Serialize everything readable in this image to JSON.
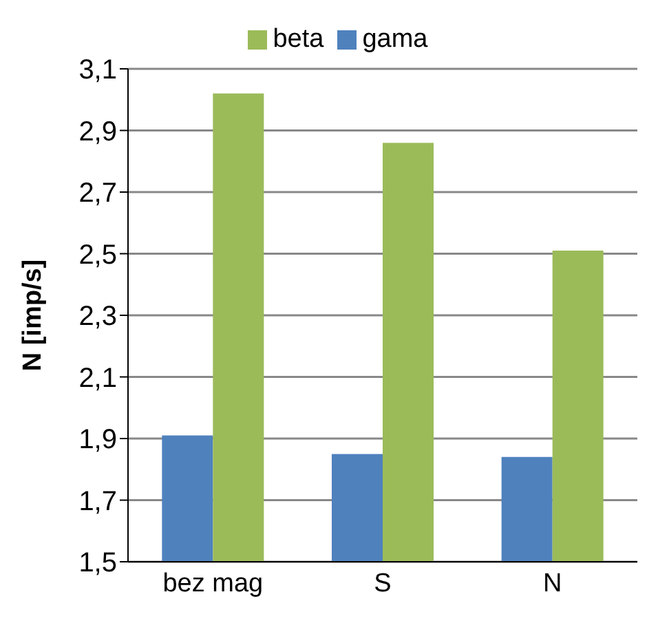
{
  "chart_data": {
    "type": "bar",
    "ylabel": "N [imp/s]",
    "categories": [
      "bez mag",
      "S",
      "N"
    ],
    "series": [
      {
        "name": "gama",
        "color": "#4f81bd",
        "values": [
          1.91,
          1.85,
          1.84
        ]
      },
      {
        "name": "beta",
        "color": "#9bbb59",
        "values": [
          3.02,
          2.86,
          2.51
        ]
      }
    ],
    "ylim": [
      1.5,
      3.1
    ],
    "yticks": [
      {
        "value": 1.5,
        "label": "1,5"
      },
      {
        "value": 1.7,
        "label": "1,7"
      },
      {
        "value": 1.9,
        "label": "1,9"
      },
      {
        "value": 2.1,
        "label": "2,1"
      },
      {
        "value": 2.3,
        "label": "2,3"
      },
      {
        "value": 2.5,
        "label": "2,5"
      },
      {
        "value": 2.7,
        "label": "2,7"
      },
      {
        "value": 2.9,
        "label": "2,9"
      },
      {
        "value": 3.1,
        "label": "3,1"
      }
    ],
    "grid": "y",
    "legend": "top"
  }
}
